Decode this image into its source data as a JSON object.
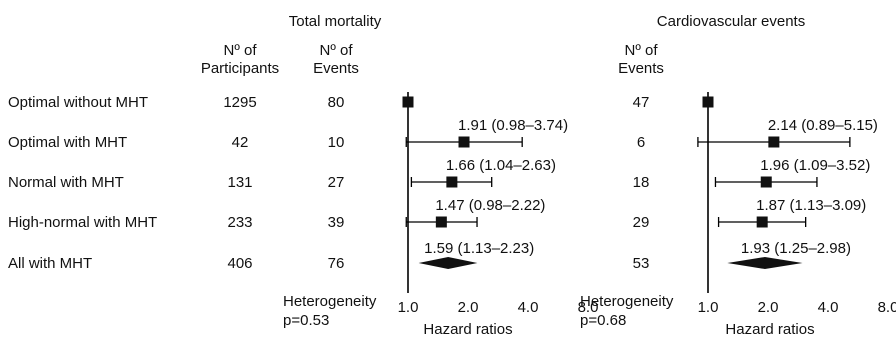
{
  "chart_data": {
    "type": "forest",
    "columns": {
      "participants": [
        "Nº of",
        "Participants"
      ],
      "events_total": [
        "Nº of",
        "Events"
      ],
      "events_cv": [
        "Nº of",
        "Events"
      ]
    },
    "rows": [
      {
        "label": "Optimal without MHT",
        "participants": "1295",
        "events_total": "80",
        "events_cv": "47"
      },
      {
        "label": "Optimal with MHT",
        "participants": "42",
        "events_total": "10",
        "events_cv": "6"
      },
      {
        "label": "Normal with MHT",
        "participants": "131",
        "events_total": "27",
        "events_cv": "18"
      },
      {
        "label": "High-normal with MHT",
        "participants": "233",
        "events_total": "39",
        "events_cv": "29"
      },
      {
        "label": "All with MHT",
        "participants": "406",
        "events_total": "76",
        "events_cv": "53"
      }
    ],
    "panels": [
      {
        "title": "Total mortality",
        "xlabel": "Hazard ratios",
        "scale": "log",
        "xlim": [
          1.0,
          8.0
        ],
        "ticks": [
          "1.0",
          "2.0",
          "4.0",
          "8.0"
        ],
        "tick_values": [
          1,
          2,
          4,
          8
        ],
        "heterogeneity": [
          "Heterogeneity",
          "p=0.53"
        ],
        "estimates": [
          {
            "hr": 1.0,
            "lo": null,
            "hi": null,
            "label": "",
            "kind": "reference"
          },
          {
            "hr": 1.91,
            "lo": 0.98,
            "hi": 3.74,
            "label": "1.91 (0.98–3.74)",
            "kind": "square"
          },
          {
            "hr": 1.66,
            "lo": 1.04,
            "hi": 2.63,
            "label": "1.66 (1.04–2.63)",
            "kind": "square"
          },
          {
            "hr": 1.47,
            "lo": 0.98,
            "hi": 2.22,
            "label": "1.47 (0.98–2.22)",
            "kind": "square"
          },
          {
            "hr": 1.59,
            "lo": 1.13,
            "hi": 2.23,
            "label": "1.59 (1.13–2.23)",
            "kind": "diamond"
          }
        ]
      },
      {
        "title": "Cardiovascular events",
        "xlabel": "Hazard ratios",
        "scale": "log",
        "xlim": [
          1.0,
          8.0
        ],
        "ticks": [
          "1.0",
          "2.0",
          "4.0",
          "8.0"
        ],
        "tick_values": [
          1,
          2,
          4,
          8
        ],
        "heterogeneity": [
          "Heterogeneity",
          "p=0.68"
        ],
        "estimates": [
          {
            "hr": 1.0,
            "lo": null,
            "hi": null,
            "label": "",
            "kind": "reference"
          },
          {
            "hr": 2.14,
            "lo": 0.89,
            "hi": 5.15,
            "label": "2.14 (0.89–5.15)",
            "kind": "square"
          },
          {
            "hr": 1.96,
            "lo": 1.09,
            "hi": 3.52,
            "label": "1.96 (1.09–3.52)",
            "kind": "square"
          },
          {
            "hr": 1.87,
            "lo": 1.13,
            "hi": 3.09,
            "label": "1.87 (1.13–3.09)",
            "kind": "square"
          },
          {
            "hr": 1.93,
            "lo": 1.25,
            "hi": 2.98,
            "label": "1.93 (1.25–2.98)",
            "kind": "diamond"
          }
        ]
      }
    ]
  }
}
